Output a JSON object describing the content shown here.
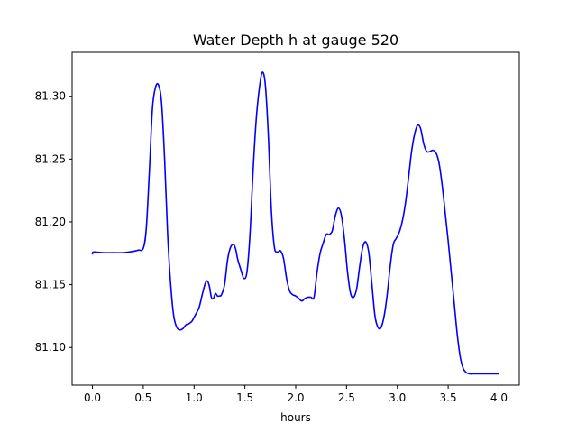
{
  "chart_data": {
    "type": "line",
    "title": "Water Depth h at gauge 520",
    "xlabel": "hours",
    "ylabel": "",
    "xlim": [
      -0.2,
      4.2
    ],
    "ylim": [
      81.07,
      81.335
    ],
    "xticks": [
      0.0,
      0.5,
      1.0,
      1.5,
      2.0,
      2.5,
      3.0,
      3.5,
      4.0
    ],
    "xtick_labels": [
      "0.0",
      "0.5",
      "1.0",
      "1.5",
      "2.0",
      "2.5",
      "3.0",
      "3.5",
      "4.0"
    ],
    "yticks": [
      81.1,
      81.15,
      81.2,
      81.25,
      81.3
    ],
    "ytick_labels": [
      "81.10",
      "81.15",
      "81.20",
      "81.25",
      "81.30"
    ],
    "grid": false,
    "legend": "none",
    "series": [
      {
        "color": "#0000ff",
        "x": [
          0.0,
          0.01,
          0.1,
          0.2,
          0.3,
          0.4,
          0.45,
          0.5,
          0.53,
          0.56,
          0.59,
          0.62,
          0.65,
          0.68,
          0.71,
          0.74,
          0.77,
          0.8,
          0.83,
          0.86,
          0.89,
          0.92,
          0.95,
          0.98,
          1.0,
          1.02,
          1.05,
          1.08,
          1.11,
          1.13,
          1.15,
          1.17,
          1.19,
          1.21,
          1.23,
          1.25,
          1.27,
          1.3,
          1.33,
          1.36,
          1.39,
          1.41,
          1.43,
          1.46,
          1.49,
          1.52,
          1.55,
          1.58,
          1.61,
          1.64,
          1.67,
          1.7,
          1.73,
          1.76,
          1.79,
          1.82,
          1.85,
          1.88,
          1.91,
          1.94,
          1.97,
          2.0,
          2.03,
          2.06,
          2.09,
          2.12,
          2.15,
          2.18,
          2.21,
          2.24,
          2.27,
          2.3,
          2.33,
          2.36,
          2.39,
          2.42,
          2.45,
          2.48,
          2.51,
          2.54,
          2.57,
          2.6,
          2.63,
          2.66,
          2.69,
          2.72,
          2.75,
          2.78,
          2.81,
          2.84,
          2.87,
          2.9,
          2.93,
          2.96,
          2.99,
          3.02,
          3.05,
          3.08,
          3.11,
          3.14,
          3.17,
          3.2,
          3.23,
          3.26,
          3.29,
          3.32,
          3.35,
          3.38,
          3.41,
          3.44,
          3.47,
          3.5,
          3.53,
          3.56,
          3.59,
          3.62,
          3.65,
          3.68,
          3.71,
          3.74,
          3.77,
          3.8,
          3.83,
          3.86,
          3.89,
          3.92,
          3.95,
          3.98,
          4.0
        ],
        "y": [
          81.174,
          81.176,
          81.1755,
          81.1755,
          81.1755,
          81.1765,
          81.1775,
          81.179,
          81.195,
          81.24,
          81.29,
          81.307,
          81.309,
          81.295,
          81.25,
          81.19,
          81.15,
          81.125,
          81.116,
          81.114,
          81.115,
          81.118,
          81.119,
          81.121,
          81.124,
          81.127,
          81.132,
          81.142,
          81.151,
          81.153,
          81.149,
          81.14,
          81.139,
          81.143,
          81.141,
          81.141,
          81.142,
          81.15,
          81.17,
          81.18,
          81.182,
          81.178,
          81.17,
          81.162,
          81.155,
          81.16,
          81.19,
          81.24,
          81.28,
          81.305,
          81.319,
          81.31,
          81.27,
          81.21,
          81.18,
          81.176,
          81.177,
          81.171,
          81.155,
          81.145,
          81.142,
          81.141,
          81.139,
          81.137,
          81.139,
          81.14,
          81.14,
          81.14,
          81.16,
          81.175,
          81.183,
          81.19,
          81.19,
          81.193,
          81.205,
          81.211,
          81.205,
          81.186,
          81.16,
          81.143,
          81.14,
          81.147,
          81.165,
          81.18,
          81.184,
          81.175,
          81.15,
          81.125,
          81.116,
          81.116,
          81.125,
          81.142,
          81.165,
          81.182,
          81.187,
          81.192,
          81.201,
          81.215,
          81.235,
          81.256,
          81.27,
          81.277,
          81.274,
          81.262,
          81.256,
          81.256,
          81.257,
          81.255,
          81.247,
          81.23,
          81.208,
          81.185,
          81.16,
          81.135,
          81.11,
          81.092,
          81.083,
          81.08,
          81.079,
          81.079,
          81.079,
          81.079,
          81.079,
          81.079,
          81.079,
          81.079,
          81.079,
          81.079,
          81.079
        ]
      }
    ]
  }
}
